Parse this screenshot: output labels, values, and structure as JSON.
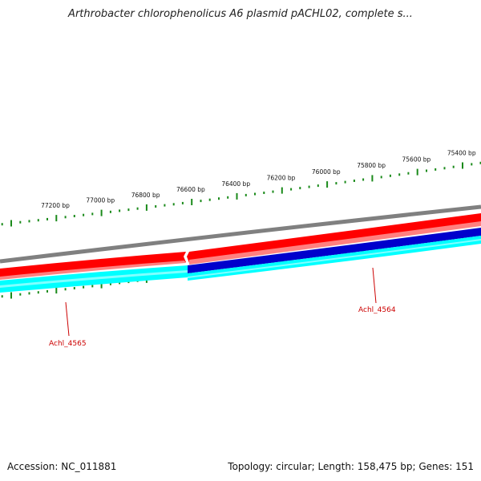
{
  "title": "Arthrobacter chlorophenolicus A6 plasmid pACHL02, complete s...",
  "footer": {
    "accession": "Accession: NC_011881",
    "summary": "Topology: circular; Length: 158,475 bp; Genes: 151"
  },
  "ruler": {
    "labels": [
      "77200 bp",
      "77000 bp",
      "76800 bp",
      "76600 bp",
      "76400 bp",
      "76200 bp",
      "76000 bp",
      "75800 bp",
      "75600 bp",
      "75400 bp"
    ]
  },
  "genes": [
    {
      "name": "Achl_4565",
      "color": "#cc0000"
    },
    {
      "name": "Achl_4564",
      "color": "#cc0000"
    }
  ],
  "colors": {
    "backbone": "#808080",
    "forward": "#ff0000",
    "forward_light": "#ff8080",
    "reverse": "#0000cc",
    "cds": "#00ffff",
    "cds_light": "#80ffff",
    "tick": "#1a8a1a"
  }
}
